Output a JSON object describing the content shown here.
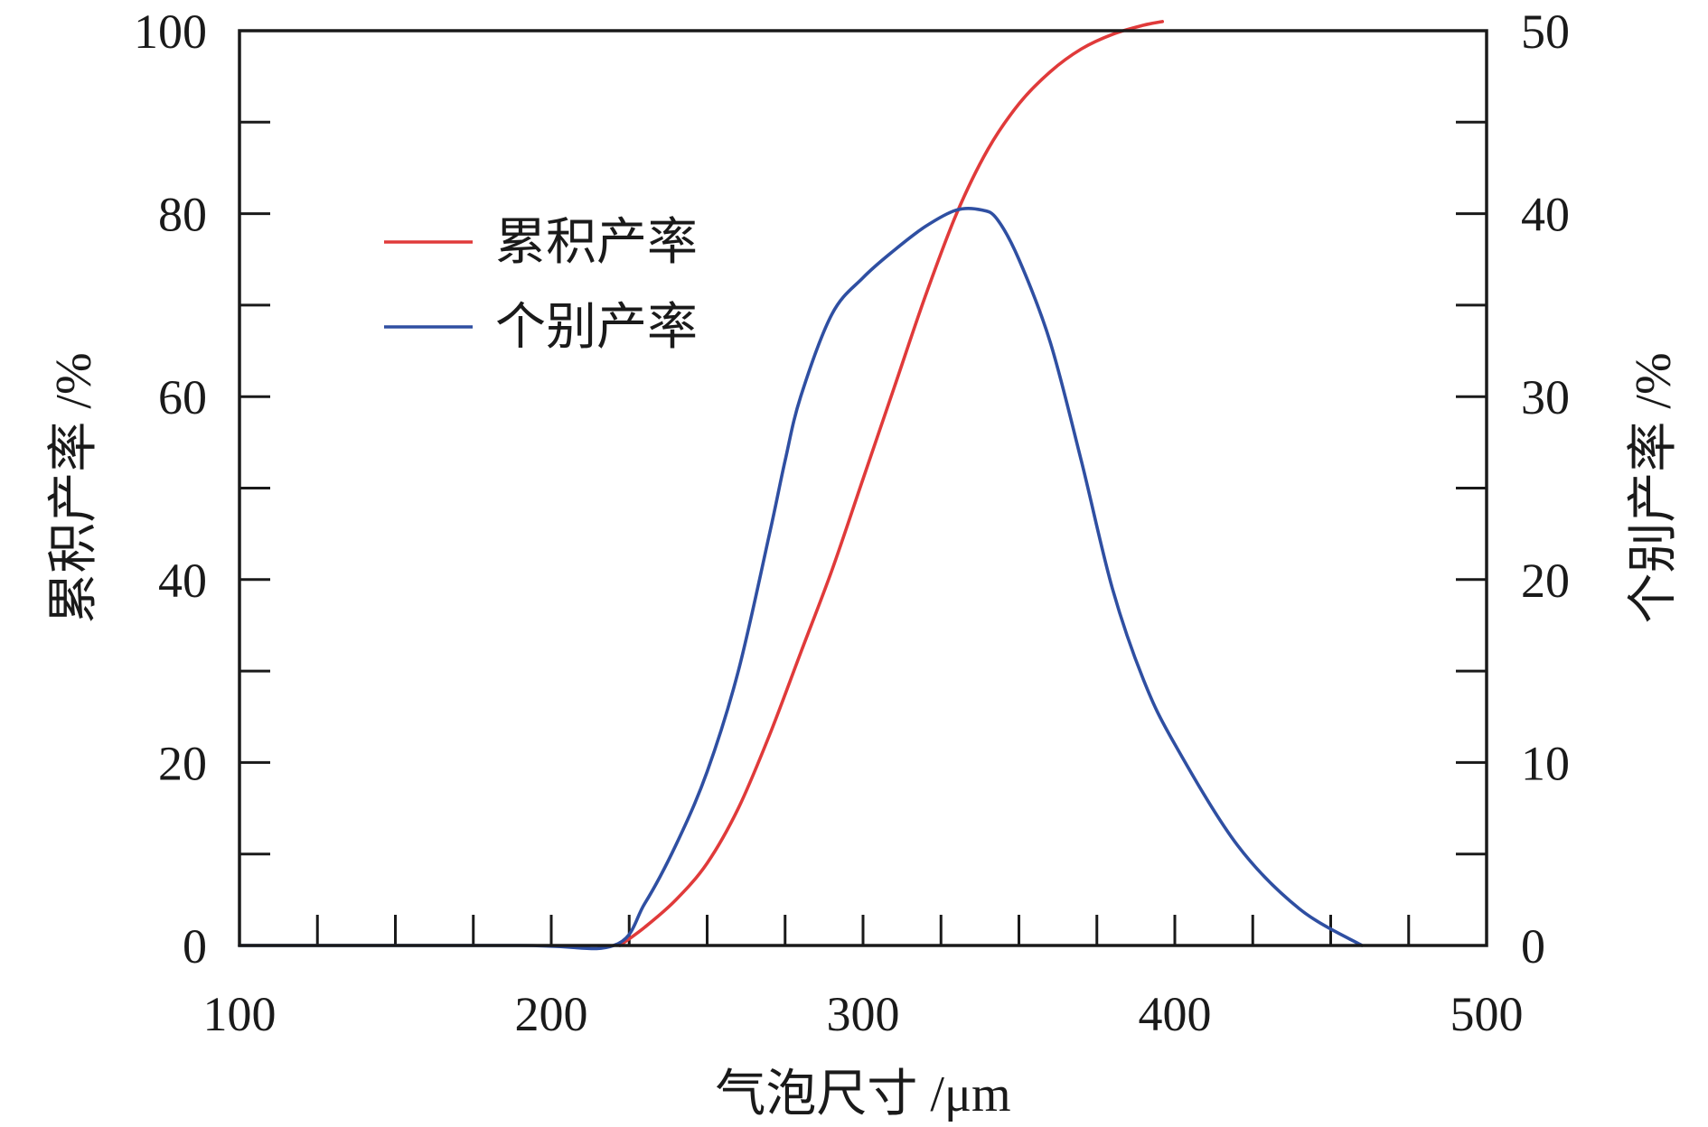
{
  "chart_data": {
    "type": "line",
    "title": "",
    "xlabel": "气泡尺寸 /μm",
    "ylabel_left": "累积产率 /%",
    "ylabel_right": "个别产率 /%",
    "xlim": [
      100,
      500
    ],
    "ylim_left": [
      0,
      100
    ],
    "ylim_right": [
      0,
      50
    ],
    "x_ticks": [
      100,
      200,
      300,
      400,
      500
    ],
    "y_ticks_left": [
      0,
      20,
      40,
      60,
      80,
      100
    ],
    "y_ticks_right": [
      0,
      10,
      20,
      30,
      40,
      50
    ],
    "grid": false,
    "legend": {
      "position": "upper-left",
      "entries": [
        {
          "label": "累积产率",
          "color": "#e03a3a"
        },
        {
          "label": "个别产率",
          "color": "#2f4fa2"
        }
      ]
    },
    "series": [
      {
        "name": "累积产率",
        "axis": "left",
        "color": "#e03a3a",
        "x": [
          222,
          230,
          240,
          250,
          260,
          270,
          280,
          290,
          300,
          310,
          320,
          330,
          340,
          350,
          360,
          370,
          380,
          390,
          396
        ],
        "y": [
          0,
          2,
          5,
          9,
          15,
          23,
          32,
          41,
          51,
          61,
          71,
          80,
          87,
          92,
          95.5,
          98,
          99.6,
          100.6,
          101
        ]
      },
      {
        "name": "个别产率",
        "axis": "right",
        "color": "#2f4fa2",
        "x": [
          100,
          190,
          220,
          230,
          240,
          250,
          260,
          270,
          275,
          280,
          290,
          300,
          310,
          320,
          330,
          338,
          343,
          350,
          360,
          370,
          380,
          390,
          400,
          420,
          440,
          460
        ],
        "y": [
          0,
          0,
          0,
          2.3,
          5.5,
          9.5,
          15,
          22.5,
          26.5,
          30,
          34.5,
          36.5,
          38,
          39.3,
          40.2,
          40.2,
          39.7,
          37.5,
          33,
          26.5,
          19.5,
          14.5,
          11,
          5.5,
          2,
          0
        ]
      }
    ]
  }
}
